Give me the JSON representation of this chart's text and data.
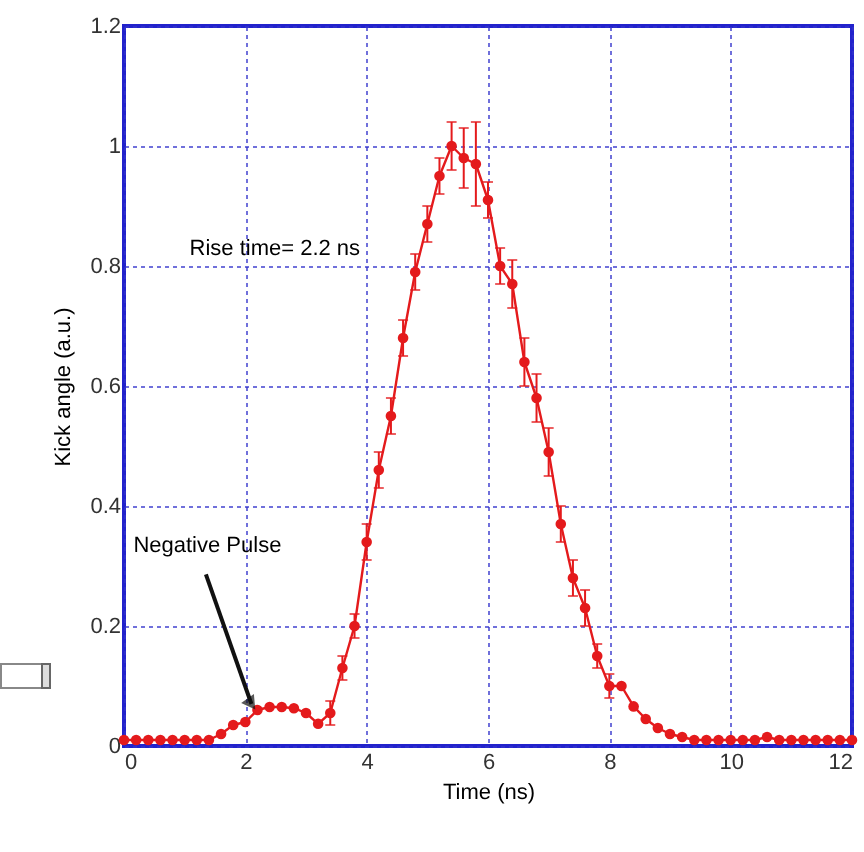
{
  "chart_data": {
    "type": "line",
    "xlabel": "Time (ns)",
    "ylabel": "Kick angle (a.u.)",
    "xlim": [
      0,
      12
    ],
    "ylim": [
      0,
      1.2
    ],
    "xticks": [
      0,
      2,
      4,
      6,
      8,
      10,
      12
    ],
    "yticks": [
      0,
      0.2,
      0.4,
      0.6,
      0.8,
      1,
      1.2
    ],
    "grid": true,
    "marker": "circle",
    "line_style": "solid",
    "x": [
      0,
      0.2,
      0.4,
      0.6,
      0.8,
      1.0,
      1.2,
      1.4,
      1.6,
      1.8,
      2.0,
      2.2,
      2.4,
      2.6,
      2.8,
      3.0,
      3.2,
      3.4,
      3.6,
      3.8,
      4.0,
      4.2,
      4.4,
      4.6,
      4.8,
      5.0,
      5.2,
      5.4,
      5.6,
      5.8,
      6.0,
      6.2,
      6.4,
      6.6,
      6.8,
      7.0,
      7.2,
      7.4,
      7.6,
      7.8,
      8.0,
      8.2,
      8.4,
      8.6,
      8.8,
      9.0,
      9.2,
      9.4,
      9.6,
      9.8,
      10.0,
      10.2,
      10.4,
      10.6,
      10.8,
      11.0,
      11.2,
      11.4,
      11.6,
      11.8,
      12.0
    ],
    "series": [
      {
        "color": "#e41a1c",
        "values": [
          0.01,
          0.01,
          0.01,
          0.01,
          0.01,
          0.01,
          0.01,
          0.01,
          0.02,
          0.035,
          0.04,
          0.06,
          0.065,
          0.065,
          0.063,
          0.055,
          0.037,
          0.055,
          0.13,
          0.2,
          0.34,
          0.46,
          0.55,
          0.68,
          0.79,
          0.87,
          0.95,
          1.0,
          0.98,
          0.97,
          0.91,
          0.8,
          0.77,
          0.64,
          0.58,
          0.49,
          0.37,
          0.28,
          0.23,
          0.15,
          0.1,
          0.1,
          0.066,
          0.045,
          0.03,
          0.02,
          0.015,
          0.01,
          0.01,
          0.01,
          0.01,
          0.01,
          0.01,
          0.015,
          0.01,
          0.01,
          0.01,
          0.01,
          0.01,
          0.01,
          0.01
        ],
        "errors": [
          null,
          null,
          null,
          null,
          null,
          null,
          null,
          null,
          null,
          null,
          null,
          null,
          null,
          null,
          null,
          null,
          null,
          0.02,
          0.02,
          0.02,
          0.03,
          0.03,
          0.03,
          0.03,
          0.03,
          0.03,
          0.03,
          0.04,
          0.05,
          0.07,
          0.03,
          0.03,
          0.04,
          0.04,
          0.04,
          0.04,
          0.03,
          0.03,
          0.03,
          0.02,
          0.02,
          null,
          null,
          null,
          null,
          null,
          null,
          null,
          null,
          null,
          null,
          null,
          null,
          null,
          null,
          null,
          null,
          null,
          null,
          null,
          null
        ]
      }
    ],
    "annotations": [
      "Rise time= 2.2 ns",
      {
        "text": "Negative Pulse",
        "x": 2.1,
        "y": 0.07
      }
    ]
  }
}
